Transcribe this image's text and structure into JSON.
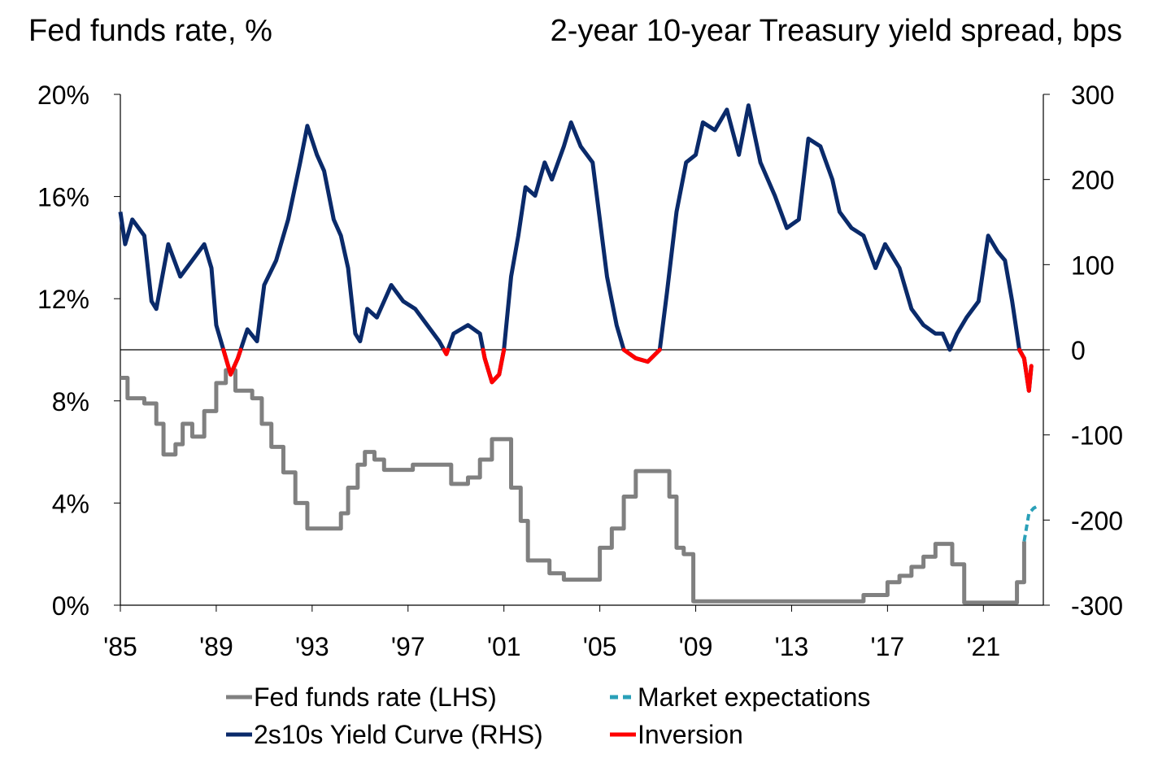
{
  "chart_data": {
    "type": "line",
    "title_left": "Fed funds rate, %",
    "title_right": "2-year 10-year Treasury yield spread, bps",
    "xlim": [
      1985,
      2023.5
    ],
    "ylim_left": [
      0,
      20
    ],
    "ylim_right": [
      -300,
      300
    ],
    "x_ticks": [
      1985,
      1989,
      1993,
      1997,
      2001,
      2005,
      2009,
      2013,
      2017,
      2021
    ],
    "x_tick_labels": [
      "'85",
      "'89",
      "'93",
      "'97",
      "'01",
      "'05",
      "'09",
      "'13",
      "'17",
      "'21"
    ],
    "y_left_ticks": [
      0,
      4,
      8,
      12,
      16,
      20
    ],
    "y_left_tick_labels": [
      "0%",
      "4%",
      "8%",
      "12%",
      "16%",
      "20%"
    ],
    "y_right_ticks": [
      -300,
      -200,
      -100,
      0,
      100,
      200,
      300
    ],
    "y_right_tick_labels": [
      "-300",
      "-200",
      "-100",
      "0",
      "100",
      "200",
      "300"
    ],
    "grid": false,
    "legend_placement": "bottom",
    "legend": [
      {
        "label": "Fed funds rate (LHS)",
        "color": "#808080",
        "style": "solid"
      },
      {
        "label": "Market expectations",
        "color": "#2aa0b8",
        "style": "dashed"
      },
      {
        "label": "2s10s Yield Curve (RHS)",
        "color": "#0a2a6a",
        "style": "solid"
      },
      {
        "label": "Inversion",
        "color": "#ff0000",
        "style": "solid"
      }
    ],
    "series": [
      {
        "name": "Fed funds rate (LHS)",
        "axis": "left",
        "color": "#808080",
        "step": true,
        "x": [
          1985.0,
          1985.3,
          1986.0,
          1986.5,
          1986.8,
          1987.3,
          1987.6,
          1988.0,
          1988.5,
          1989.0,
          1989.4,
          1989.8,
          1990.5,
          1990.9,
          1991.3,
          1991.8,
          1992.3,
          1992.8,
          1994.0,
          1994.2,
          1994.5,
          1994.9,
          1995.2,
          1995.6,
          1996.0,
          1997.2,
          1998.6,
          1998.8,
          1999.5,
          2000.0,
          2000.5,
          2001.0,
          2001.3,
          2001.7,
          2002.0,
          2002.9,
          2003.5,
          2004.5,
          2005.0,
          2005.5,
          2006.0,
          2006.5,
          2007.6,
          2007.9,
          2008.2,
          2008.5,
          2008.9,
          2015.9,
          2016.0,
          2017.0,
          2017.5,
          2018.0,
          2018.5,
          2019.0,
          2019.5,
          2019.7,
          2020.2,
          2022.2,
          2022.4,
          2022.7
        ],
        "y": [
          8.9,
          8.1,
          7.9,
          7.1,
          5.9,
          6.3,
          7.1,
          6.6,
          7.6,
          8.7,
          9.2,
          8.4,
          8.1,
          7.1,
          6.2,
          5.2,
          4.0,
          3.0,
          3.0,
          3.6,
          4.6,
          5.5,
          6.0,
          5.7,
          5.3,
          5.5,
          5.5,
          4.75,
          5.0,
          5.7,
          6.5,
          6.5,
          4.6,
          3.3,
          1.75,
          1.25,
          1.0,
          1.0,
          2.25,
          3.0,
          4.25,
          5.25,
          5.25,
          4.25,
          2.25,
          2.0,
          0.15,
          0.15,
          0.4,
          0.9,
          1.15,
          1.5,
          1.9,
          2.4,
          2.4,
          1.6,
          0.1,
          0.1,
          0.9,
          2.5
        ]
      },
      {
        "name": "Market expectations",
        "axis": "left",
        "color": "#2aa0b8",
        "dashed": true,
        "x": [
          2022.7,
          2022.9,
          2023.1,
          2023.3
        ],
        "y": [
          2.5,
          3.6,
          3.8,
          3.9
        ]
      },
      {
        "name": "2s10s Yield Curve (RHS)",
        "axis": "right",
        "color": "#0a2a6a",
        "inversion_color": "#ff0000",
        "x": [
          1985.0,
          1985.2,
          1985.5,
          1986.0,
          1986.3,
          1986.5,
          1987.0,
          1987.5,
          1988.0,
          1988.5,
          1988.8,
          1989.0,
          1989.3,
          1989.6,
          1989.9,
          1990.3,
          1990.7,
          1991.0,
          1991.5,
          1992.0,
          1992.5,
          1992.8,
          1993.2,
          1993.5,
          1993.9,
          1994.2,
          1994.5,
          1994.8,
          1995.0,
          1995.3,
          1995.7,
          1996.0,
          1996.3,
          1996.8,
          1997.3,
          1997.8,
          1998.3,
          1998.6,
          1998.9,
          1999.5,
          2000.0,
          2000.2,
          2000.5,
          2000.8,
          2001.0,
          2001.3,
          2001.6,
          2001.9,
          2002.3,
          2002.7,
          2003.0,
          2003.5,
          2003.8,
          2004.2,
          2004.7,
          2005.0,
          2005.3,
          2005.7,
          2006.0,
          2006.5,
          2007.0,
          2007.5,
          2007.8,
          2008.2,
          2008.6,
          2009.0,
          2009.3,
          2009.8,
          2010.3,
          2010.8,
          2011.2,
          2011.7,
          2012.3,
          2012.8,
          2013.3,
          2013.7,
          2014.2,
          2014.7,
          2015.0,
          2015.5,
          2016.0,
          2016.5,
          2016.9,
          2017.5,
          2018.0,
          2018.5,
          2019.0,
          2019.3,
          2019.6,
          2019.9,
          2020.3,
          2020.8,
          2021.2,
          2021.6,
          2021.9,
          2022.2,
          2022.5,
          2022.7,
          2022.9,
          2023.0
        ],
        "y": [
          162,
          124,
          153,
          134,
          57,
          48,
          124,
          86,
          105,
          124,
          96,
          29,
          0,
          -29,
          -10,
          24,
          10,
          76,
          105,
          153,
          220,
          263,
          229,
          210,
          153,
          134,
          96,
          19,
          10,
          48,
          38,
          57,
          76,
          57,
          48,
          29,
          10,
          -5,
          19,
          29,
          19,
          -10,
          -38,
          -29,
          0,
          86,
          134,
          191,
          181,
          220,
          200,
          239,
          267,
          239,
          220,
          153,
          86,
          29,
          0,
          -10,
          -14,
          0,
          67,
          162,
          220,
          229,
          267,
          258,
          282,
          229,
          287,
          220,
          181,
          143,
          153,
          248,
          239,
          200,
          162,
          143,
          134,
          96,
          124,
          96,
          48,
          29,
          19,
          19,
          0,
          19,
          38,
          57,
          134,
          115,
          105,
          57,
          0,
          -10,
          -48,
          -19
        ]
      }
    ]
  }
}
